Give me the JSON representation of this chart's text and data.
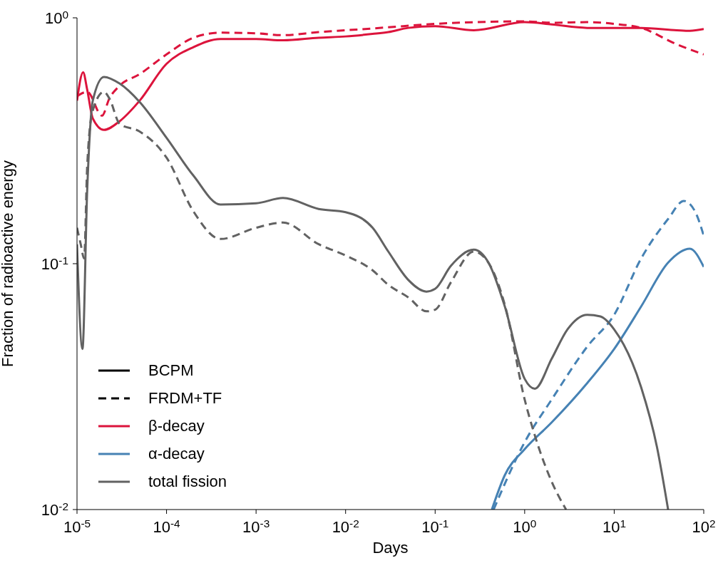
{
  "chart_data": {
    "type": "line",
    "xlabel": "Days",
    "ylabel": "Fraction of radioactive energy",
    "log": "xy",
    "legend": "bottom left",
    "marker": "none",
    "xlim": [
      1e-05,
      100
    ],
    "ylim": [
      0.01,
      1
    ],
    "xticks": [
      {
        "value": 1e-05,
        "label": "10$^{-5}$"
      },
      {
        "value": 0.0001,
        "label": "10$^{-4}$"
      },
      {
        "value": 0.001,
        "label": "10$^{-3}$"
      },
      {
        "value": 0.01,
        "label": "10$^{-2}$"
      },
      {
        "value": 0.1,
        "label": "10$^{-1}$"
      },
      {
        "value": 1,
        "label": "10$^{0}$"
      },
      {
        "value": 10,
        "label": "10$^{1}$"
      },
      {
        "value": 100,
        "label": "10$^{2}$"
      }
    ],
    "yticks": [
      {
        "value": 0.01,
        "label": "10$^{-2}$"
      },
      {
        "value": 0.1,
        "label": "10$^{-1}$"
      },
      {
        "value": 1,
        "label": "10$^{0}$"
      }
    ],
    "series": [
      {
        "name": "BCPM",
        "color": "#000000",
        "line_style": "solid"
      },
      {
        "name": "FRDM+TF",
        "color": "#000000",
        "line_style": "dashed"
      },
      {
        "name": "β-decay",
        "color": "#dc143c",
        "line_style": "solid",
        "x": [
          1e-05,
          1.17e-05,
          1.3e-05,
          1.5e-05,
          2e-05,
          3e-05,
          5e-05,
          0.0001,
          0.0002,
          0.0004,
          0.001,
          0.002,
          0.005,
          0.01,
          0.02,
          0.03,
          0.05,
          0.1,
          0.27,
          1,
          2,
          5,
          10,
          20,
          50,
          70,
          100
        ],
        "values": [
          0.46,
          0.6,
          0.51,
          0.39,
          0.35,
          0.38,
          0.46,
          0.65,
          0.76,
          0.82,
          0.82,
          0.81,
          0.83,
          0.84,
          0.86,
          0.875,
          0.91,
          0.925,
          0.89,
          0.96,
          0.94,
          0.91,
          0.91,
          0.91,
          0.89,
          0.885,
          0.9
        ]
      },
      {
        "color": "#dc143c",
        "line_style": "dashed",
        "x": [
          1e-05,
          1.3e-05,
          1.9e-05,
          2.3e-05,
          3e-05,
          5e-05,
          0.0001,
          0.0002,
          0.0004,
          0.001,
          0.002,
          0.005,
          0.01,
          0.02,
          0.03,
          0.1,
          0.27,
          1,
          2,
          5,
          10,
          20,
          50,
          100
        ],
        "values": [
          0.48,
          0.5,
          0.4,
          0.47,
          0.53,
          0.59,
          0.71,
          0.83,
          0.87,
          0.865,
          0.85,
          0.875,
          0.89,
          0.905,
          0.915,
          0.945,
          0.96,
          0.967,
          0.955,
          0.96,
          0.945,
          0.91,
          0.78,
          0.71
        ]
      },
      {
        "name": "α-decay",
        "color": "#4682b4",
        "line_style": "solid",
        "x": [
          0.43,
          0.6,
          1,
          2,
          5,
          10,
          20,
          40,
          70,
          100
        ],
        "values": [
          0.01,
          0.0138,
          0.0176,
          0.0226,
          0.0327,
          0.045,
          0.067,
          0.101,
          0.115,
          0.097
        ]
      },
      {
        "color": "#4682b4",
        "line_style": "dashed",
        "x": [
          0.45,
          1,
          2,
          5,
          10,
          20,
          40,
          60,
          80,
          100
        ],
        "values": [
          0.01,
          0.0188,
          0.028,
          0.046,
          0.062,
          0.105,
          0.152,
          0.18,
          0.163,
          0.13
        ]
      },
      {
        "name": "total fission",
        "color": "#626262",
        "line_style": "solid",
        "x": [
          1e-05,
          1.15e-05,
          1.3e-05,
          1.5e-05,
          2e-05,
          3e-05,
          5e-05,
          0.0001,
          0.0002,
          0.0004,
          0.001,
          0.002,
          0.005,
          0.01,
          0.02,
          0.03,
          0.05,
          0.08,
          0.1,
          0.15,
          0.27,
          0.4,
          0.6,
          1,
          1.3,
          2,
          3,
          5,
          7,
          10,
          20,
          30,
          40
        ],
        "values": [
          0.12,
          0.045,
          0.2,
          0.46,
          0.575,
          0.54,
          0.455,
          0.325,
          0.228,
          0.174,
          0.176,
          0.185,
          0.167,
          0.162,
          0.14,
          0.112,
          0.086,
          0.077,
          0.079,
          0.098,
          0.114,
          0.1,
          0.067,
          0.034,
          0.031,
          0.041,
          0.054,
          0.062,
          0.061,
          0.054,
          0.0314,
          0.018,
          0.01
        ]
      },
      {
        "color": "#626262",
        "line_style": "dashed",
        "x": [
          1e-05,
          1.1e-05,
          1.2e-05,
          1.3e-05,
          1.5e-05,
          2e-05,
          2.3e-05,
          3e-05,
          5e-05,
          0.0001,
          0.0002,
          0.0004,
          0.001,
          0.002,
          0.005,
          0.01,
          0.02,
          0.03,
          0.05,
          0.08,
          0.1,
          0.15,
          0.27,
          0.4,
          0.6,
          1,
          1.3,
          2,
          2.9
        ],
        "values": [
          0.14,
          0.12,
          0.105,
          0.25,
          0.42,
          0.5,
          0.47,
          0.37,
          0.345,
          0.27,
          0.163,
          0.126,
          0.14,
          0.147,
          0.12,
          0.108,
          0.094,
          0.082,
          0.073,
          0.064,
          0.065,
          0.084,
          0.112,
          0.1,
          0.068,
          0.028,
          0.02,
          0.013,
          0.01
        ]
      }
    ]
  }
}
